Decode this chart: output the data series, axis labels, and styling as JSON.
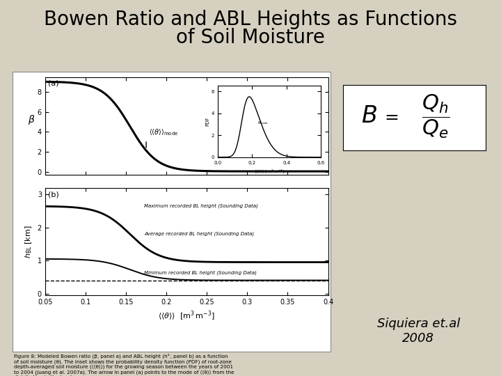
{
  "title_line1": "Bowen Ratio and ABL Heights as Functions",
  "title_line2": "of Soil Moisture",
  "title_fontsize": 20,
  "title_fontweight": "normal",
  "bg_color": "#d6d0c0",
  "attribution": "Siquiera et.al\n2008",
  "attribution_fontsize": 13,
  "panel_bg": "#ffffff",
  "formula_bg": "#ffffff",
  "caption": "Figure 8: Modeled Bowen ratio (β, panel a) and ABL height (hᴵᴸ, panel b) as a function\nof soil moisture (θ). The inset shows the probability density function (PDF) of root-zone\ndepth-averaged soil moisture (⟨⟨θ⟩⟩) for the growing season between the years of 2001\nto 2004 (Juang et al. 2007a). The arrow in panel (a) points to the mode of ⟨⟨θ⟩⟩ from the\ndistribution in the inset."
}
